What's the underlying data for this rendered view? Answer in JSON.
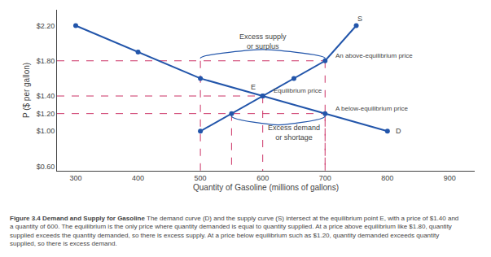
{
  "chart_data": {
    "type": "line",
    "title": "Figure 3.4 Demand and Supply for Gasoline",
    "caption": "The demand curve (D) and the supply curve (S) intersect at the equilibrium point E, with a price of $1.40 and a quantity of 600. The equilibrium is the only price where quantity demanded is equal to quantity supplied. At a price above equilibrium like $1.80, quantity supplied exceeds the quantity demanded, so there is excess supply. At a price below equilibrium such as $1.20, quantity demanded exceeds quantity supplied, so there is excess demand.",
    "xlabel": "Quantity of Gasoline (millions of gallons)",
    "ylabel": "P ($ per gallon)",
    "series": [
      {
        "color": "#2255AA",
        "marker": "circle",
        "x": [
          300,
          400,
          500,
          600,
          700,
          800
        ],
        "values": [
          2.2,
          1.9,
          1.6,
          1.4,
          1.2,
          1.0
        ]
      },
      {
        "color": "#2255AA",
        "marker": "circle",
        "x": [
          500,
          550,
          600,
          650,
          700,
          750
        ],
        "values": [
          1.0,
          1.2,
          1.4,
          1.6,
          1.8,
          2.2
        ]
      }
    ],
    "guides": {
      "color": "#CC3366",
      "line_style": "dashed",
      "levels": [
        {
          "y": 1.8,
          "x": [
            500,
            700
          ]
        },
        {
          "y": 1.4,
          "x": [
            600
          ]
        },
        {
          "y": 1.2,
          "x": [
            550,
            700
          ]
        }
      ]
    },
    "braces": [
      {
        "x": [
          500,
          700
        ],
        "y": 1.8,
        "direction": "up"
      },
      {
        "x": [
          550,
          700
        ],
        "y": 1.2,
        "direction": "down"
      }
    ],
    "annotations": [
      {
        "text": "D",
        "x": 818,
        "y": 1.0
      },
      {
        "text": "S",
        "x": 756,
        "y": 2.28
      },
      {
        "text": "E",
        "x": 585,
        "y": 1.5
      },
      {
        "text": "Excess supply\nor surplus",
        "x": 600,
        "y": 2.02
      },
      {
        "text": "Excess demand\nor shortage",
        "x": 650,
        "y": 0.98
      }
    ],
    "price_notes": [
      {
        "text": "An above-equilibrium price",
        "x": 712,
        "y": 1.8
      },
      {
        "text": "Equilibrium price",
        "x": 612,
        "y": 1.4
      },
      {
        "text": "A below-equilibrium price",
        "x": 712,
        "y": 1.2
      }
    ],
    "xlim": [
      270,
      940
    ],
    "ylim": [
      0.55,
      2.38
    ],
    "xticks": [
      300,
      400,
      500,
      600,
      700,
      800,
      900
    ],
    "yticks": [
      {
        "value": 0.6,
        "label": "$0.60"
      },
      {
        "value": 1.0,
        "label": "$1.00"
      },
      {
        "value": 1.2,
        "label": "$1.20"
      },
      {
        "value": 1.4,
        "label": "$1.40"
      },
      {
        "value": 1.8,
        "label": "$1.80"
      },
      {
        "value": 2.2,
        "label": "$2.20"
      }
    ],
    "grid": false
  }
}
